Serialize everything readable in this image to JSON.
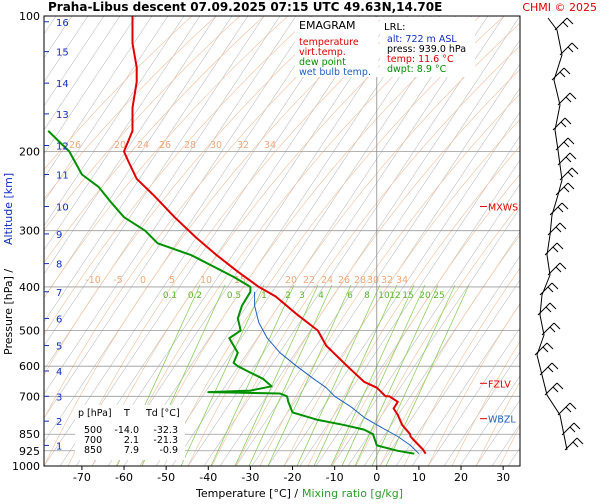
{
  "header": {
    "title": "Praha-Libus   descent   07.09.2025 07:15 UTC  49.63N,14.70E",
    "copyright": "CHMI © 2025"
  },
  "legend": {
    "title": "EMAGRAM",
    "items": [
      {
        "label": "temperature",
        "color": "#e00000"
      },
      {
        "label": "virt.temp.",
        "color": "#e00000"
      },
      {
        "label": "dew point",
        "color": "#009000"
      },
      {
        "label": "wet bulb temp.",
        "color": "#2060c0"
      }
    ]
  },
  "lrl": {
    "title": "LRL:",
    "lines": [
      {
        "text": "alt: 722 m ASL",
        "color": "#1030c0"
      },
      {
        "text": "press: 939.0 hPa",
        "color": "#000000"
      },
      {
        "text": "temp: 11.6 °C",
        "color": "#e00000"
      },
      {
        "text": "dwpt: 8.9 °C",
        "color": "#009000"
      }
    ]
  },
  "axes": {
    "ylabel": "Pressure [hPa]  /",
    "ylabel2": "Altitude [km]",
    "xlabel": "Temperature [°C]  /",
    "xlabel2": "Mixing ratio [g/kg]"
  },
  "levels": [
    {
      "label": "MXWS",
      "p": 265
    },
    {
      "label": "FZLV",
      "p": 655
    },
    {
      "label": "WBZL",
      "p": 785
    }
  ],
  "table": {
    "headers": [
      "p [hPa]",
      "T",
      "Td [°C]"
    ],
    "rows": [
      [
        "500",
        "-14.0",
        "-32.3"
      ],
      [
        "700",
        "2.1",
        "-21.3"
      ],
      [
        "850",
        "7.9",
        "-0.9"
      ]
    ]
  },
  "chart_data": {
    "type": "line",
    "title": "Praha-Libus descent 07.09.2025 07:15 UTC",
    "xlabel": "Temperature [°C] / Mixing ratio [g/kg]",
    "ylabel": "Pressure [hPa] / Altitude [km]",
    "xlim": [
      -80,
      35
    ],
    "ylim": [
      1000,
      100
    ],
    "y_scale": "log",
    "x_ticks": [
      -70,
      -60,
      -50,
      -40,
      -30,
      -20,
      -10,
      0,
      10,
      20,
      30
    ],
    "pressure_ticks": [
      100,
      200,
      300,
      400,
      500,
      600,
      700,
      850,
      925,
      1000
    ],
    "altitude_ticks_km": [
      1,
      2,
      3,
      4,
      5,
      6,
      7,
      8,
      9,
      10,
      11,
      12,
      13,
      14,
      15,
      16
    ],
    "altitude_tick_pressures": [
      900,
      795,
      700,
      615,
      540,
      470,
      410,
      355,
      305,
      265,
      225,
      194,
      165,
      141,
      120,
      103
    ],
    "mixing_ratio_labels": [
      "0.1",
      "0.2",
      "0.5",
      "1",
      "2",
      "3",
      "4",
      "6",
      "8",
      "10",
      "12",
      "15",
      "20",
      "25"
    ],
    "isotherm_labels_upper": [
      "-20",
      "-24",
      "-26",
      "-28",
      "-30",
      "-32",
      "-34"
    ],
    "isotherm_labels_upper_text": [
      "26",
      "20",
      "24",
      "26",
      "28",
      "30",
      "32",
      "34"
    ],
    "isotherm_labels_lower": [
      "-10",
      "-5",
      "0",
      "5",
      "10",
      "15",
      "20",
      "22",
      "24",
      "26",
      "28",
      "30",
      "32",
      "34"
    ],
    "grid": true,
    "series": [
      {
        "name": "temperature",
        "color": "#e00000",
        "points": [
          [
            11.6,
            939
          ],
          [
            11,
            920
          ],
          [
            9,
            880
          ],
          [
            8,
            860
          ],
          [
            7.9,
            850
          ],
          [
            6,
            810
          ],
          [
            5,
            770
          ],
          [
            4,
            745
          ],
          [
            5,
            720
          ],
          [
            3,
            700
          ],
          [
            2.1,
            700
          ],
          [
            0,
            670
          ],
          [
            -3,
            650
          ],
          [
            -7,
            600
          ],
          [
            -12,
            540
          ],
          [
            -14,
            500
          ],
          [
            -19,
            460
          ],
          [
            -24,
            420
          ],
          [
            -28,
            400
          ],
          [
            -33,
            370
          ],
          [
            -38,
            340
          ],
          [
            -43,
            310
          ],
          [
            -48,
            280
          ],
          [
            -53,
            250
          ],
          [
            -57,
            230
          ],
          [
            -59,
            210
          ],
          [
            -60,
            200
          ],
          [
            -58,
            180
          ],
          [
            -58,
            160
          ],
          [
            -57,
            140
          ],
          [
            -57,
            130
          ],
          [
            -58,
            115
          ],
          [
            -58,
            100
          ]
        ]
      },
      {
        "name": "dew point",
        "color": "#009000",
        "points": [
          [
            8.9,
            939
          ],
          [
            5,
            925
          ],
          [
            0,
            900
          ],
          [
            -0.9,
            850
          ],
          [
            -3,
            830
          ],
          [
            -8,
            810
          ],
          [
            -14,
            790
          ],
          [
            -20,
            760
          ],
          [
            -21,
            720
          ],
          [
            -21.3,
            700
          ],
          [
            -23,
            690
          ],
          [
            -40,
            685
          ],
          [
            -30,
            680
          ],
          [
            -25,
            665
          ],
          [
            -27,
            640
          ],
          [
            -30,
            620
          ],
          [
            -33,
            600
          ],
          [
            -34,
            590
          ],
          [
            -33,
            560
          ],
          [
            -35,
            520
          ],
          [
            -32.3,
            500
          ],
          [
            -33,
            470
          ],
          [
            -32,
            440
          ],
          [
            -30,
            410
          ],
          [
            -30,
            400
          ],
          [
            -34,
            380
          ],
          [
            -44,
            340
          ],
          [
            -52,
            320
          ],
          [
            -55,
            300
          ],
          [
            -60,
            280
          ],
          [
            -63,
            260
          ],
          [
            -66,
            240
          ],
          [
            -70,
            225
          ],
          [
            -73,
            200
          ],
          [
            -78,
            180
          ]
        ]
      },
      {
        "name": "wet bulb temp.",
        "color": "#2060c0",
        "points": [
          [
            10,
            939
          ],
          [
            8,
            900
          ],
          [
            5,
            860
          ],
          [
            1,
            820
          ],
          [
            -3,
            780
          ],
          [
            -6,
            740
          ],
          [
            -10,
            700
          ],
          [
            -12,
            670
          ],
          [
            -15,
            640
          ],
          [
            -19,
            600
          ],
          [
            -23,
            560
          ],
          [
            -26,
            520
          ],
          [
            -28,
            480
          ],
          [
            -29,
            440
          ],
          [
            -29,
            410
          ]
        ]
      }
    ]
  }
}
